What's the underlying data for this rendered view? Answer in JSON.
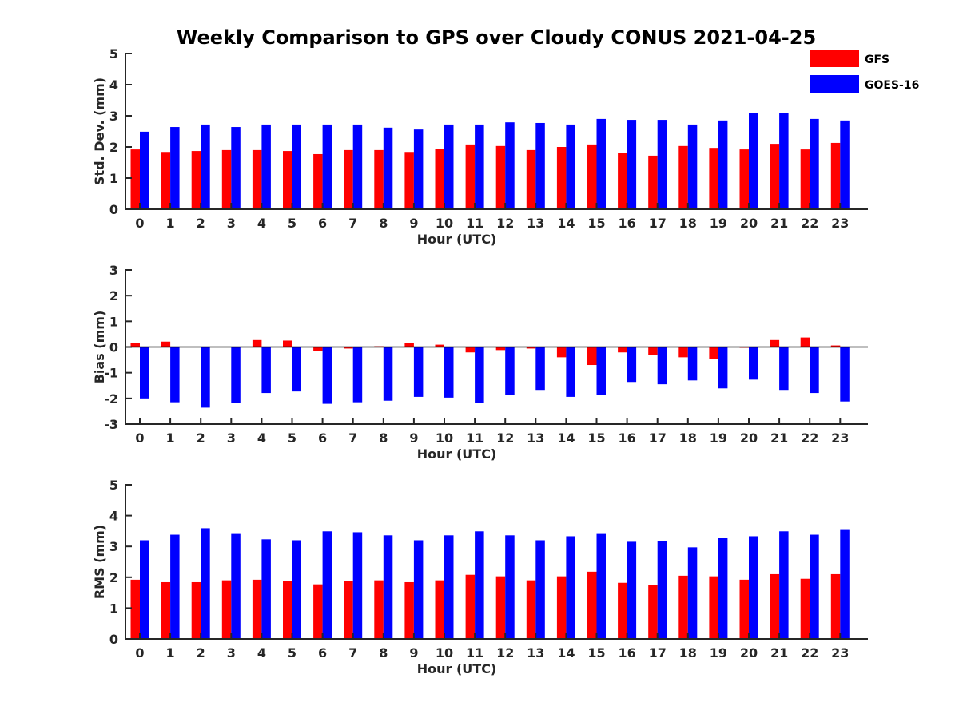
{
  "chart_data": {
    "title": "Weekly Comparison to GPS over Cloudy CONUS 2021-04-25",
    "legend": {
      "placement": "top-right",
      "entries": [
        {
          "name": "GFS",
          "color": "#ff0000"
        },
        {
          "name": "GOES-16",
          "color": "#0000ff"
        }
      ]
    },
    "subplots": [
      {
        "type": "bar",
        "xlabel": "Hour (UTC)",
        "ylabel": "Std. Dev. (mm)",
        "ylim": [
          0,
          5
        ],
        "yticks": [
          "0",
          "1",
          "2",
          "3",
          "4",
          "5"
        ],
        "categories": [
          "0",
          "1",
          "2",
          "3",
          "4",
          "5",
          "6",
          "7",
          "8",
          "9",
          "10",
          "11",
          "12",
          "13",
          "14",
          "15",
          "16",
          "17",
          "18",
          "19",
          "20",
          "21",
          "22",
          "23"
        ],
        "series": [
          {
            "name": "GFS",
            "color": "#ff0000",
            "values": [
              1.92,
              1.84,
              1.87,
              1.9,
              1.9,
              1.87,
              1.77,
              1.9,
              1.9,
              1.84,
              1.93,
              2.08,
              2.03,
              1.9,
              2.0,
              2.08,
              1.82,
              1.72,
              2.03,
              1.97,
              1.92,
              2.1,
              1.92,
              2.13
            ]
          },
          {
            "name": "GOES-16",
            "color": "#0000ff",
            "values": [
              2.49,
              2.64,
              2.72,
              2.64,
              2.72,
              2.72,
              2.72,
              2.72,
              2.62,
              2.56,
              2.72,
              2.72,
              2.79,
              2.77,
              2.72,
              2.9,
              2.87,
              2.87,
              2.72,
              2.85,
              3.08,
              3.1,
              2.9,
              2.85
            ]
          }
        ]
      },
      {
        "type": "bar",
        "xlabel": "Hour (UTC)",
        "ylabel": "Bias (mm)",
        "ylim": [
          -3,
          3
        ],
        "yticks": [
          "-3",
          "-2",
          "-1",
          "0",
          "1",
          "2",
          "3"
        ],
        "categories": [
          "0",
          "1",
          "2",
          "3",
          "4",
          "5",
          "6",
          "7",
          "8",
          "9",
          "10",
          "11",
          "12",
          "13",
          "14",
          "15",
          "16",
          "17",
          "18",
          "19",
          "20",
          "21",
          "22",
          "23"
        ],
        "series": [
          {
            "name": "GFS",
            "color": "#ff0000",
            "values": [
              0.17,
              0.21,
              0.0,
              0.0,
              0.27,
              0.25,
              -0.15,
              -0.06,
              0.03,
              0.15,
              0.09,
              -0.21,
              -0.12,
              -0.06,
              -0.4,
              -0.7,
              -0.21,
              -0.3,
              -0.4,
              -0.48,
              -0.03,
              0.27,
              0.37,
              0.06
            ]
          },
          {
            "name": "GOES-16",
            "color": "#0000ff",
            "values": [
              -2.0,
              -2.15,
              -2.36,
              -2.18,
              -1.79,
              -1.73,
              -2.21,
              -2.15,
              -2.09,
              -1.94,
              -1.97,
              -2.18,
              -1.85,
              -1.67,
              -1.94,
              -1.85,
              -1.36,
              -1.45,
              -1.3,
              -1.61,
              -1.27,
              -1.67,
              -1.79,
              -2.12
            ]
          }
        ]
      },
      {
        "type": "bar",
        "xlabel": "Hour (UTC)",
        "ylabel": "RMS (mm)",
        "ylim": [
          0,
          5
        ],
        "yticks": [
          "0",
          "1",
          "2",
          "3",
          "4",
          "5"
        ],
        "categories": [
          "0",
          "1",
          "2",
          "3",
          "4",
          "5",
          "6",
          "7",
          "8",
          "9",
          "10",
          "11",
          "12",
          "13",
          "14",
          "15",
          "16",
          "17",
          "18",
          "19",
          "20",
          "21",
          "22",
          "23"
        ],
        "series": [
          {
            "name": "GFS",
            "color": "#ff0000",
            "values": [
              1.92,
              1.84,
              1.84,
              1.9,
              1.92,
              1.87,
              1.77,
              1.87,
              1.9,
              1.84,
              1.9,
              2.08,
              2.03,
              1.9,
              2.03,
              2.18,
              1.82,
              1.74,
              2.05,
              2.03,
              1.92,
              2.1,
              1.95,
              2.1
            ]
          },
          {
            "name": "GOES-16",
            "color": "#0000ff",
            "values": [
              3.2,
              3.38,
              3.59,
              3.43,
              3.23,
              3.2,
              3.49,
              3.46,
              3.36,
              3.2,
              3.36,
              3.49,
              3.36,
              3.2,
              3.33,
              3.43,
              3.15,
              3.18,
              2.97,
              3.28,
              3.33,
              3.49,
              3.38,
              3.56
            ]
          }
        ]
      }
    ]
  }
}
